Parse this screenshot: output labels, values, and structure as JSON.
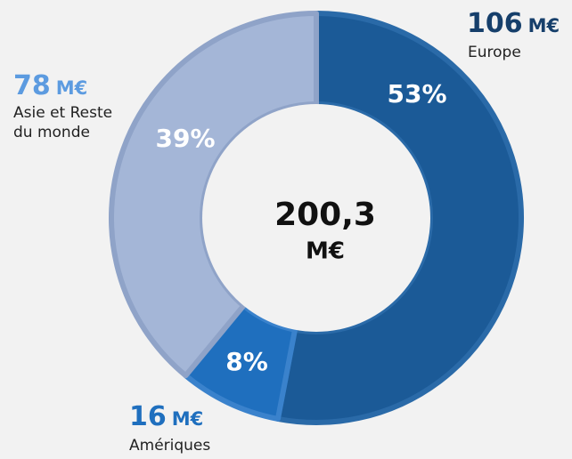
{
  "chart_data": {
    "type": "donut",
    "categories": [
      "Europe",
      "Amériques",
      "Asie et Reste du monde"
    ],
    "values": [
      53,
      8,
      39
    ],
    "value_labels": [
      "53%",
      "8%",
      "39%"
    ],
    "amounts": [
      106,
      16,
      78
    ],
    "amount_unit": "M€",
    "colors": [
      "#1b5a97",
      "#1f6fbe",
      "#a4b6d7"
    ],
    "amount_colors": [
      "#163f6b",
      "#1f6fbe",
      "#5c9be0"
    ],
    "center_label": "200,3",
    "center_unit": "M€"
  }
}
